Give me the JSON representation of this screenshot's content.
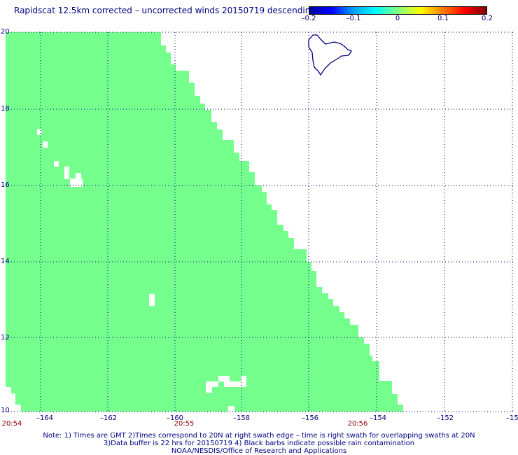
{
  "title": "Rapidscat 12.5km corrected – uncorrected winds 20150719 descending",
  "colorbar": {
    "ticks": [
      "–0.2",
      "–0.1",
      "0",
      "0.1",
      "0.2"
    ],
    "colors": [
      "#0000a0",
      "#0000ff",
      "#00a0ff",
      "#00ffff",
      "#80ff80",
      "#ffff00",
      "#ff8000",
      "#ff0000",
      "#800000"
    ]
  },
  "map": {
    "lon_labels": [
      "–164",
      "–162",
      "–160",
      "–158",
      "–156",
      "–154",
      "–152",
      "–15"
    ],
    "lat_labels": [
      "20",
      "18",
      "16",
      "14",
      "12",
      "10"
    ],
    "lon_range": [
      -165,
      -150
    ],
    "lat_range": [
      10,
      20
    ],
    "grid": true,
    "swath_color": "#75ff8c",
    "coast_color": "#000080",
    "grid_color": "#000080"
  },
  "time_labels": [
    "20:54",
    "20:55",
    "20:56"
  ],
  "notes": [
    "Note: 1) Times are GMT 2)Times correspond to 20N at right swath edge – time is right swath for overlapping swaths at 20N",
    "3)Data buffer is 22 hrs for 20150719 4) Black barbs indicate possible rain contamination",
    "NOAA/NESDIS/Office of Research and Applications"
  ]
}
